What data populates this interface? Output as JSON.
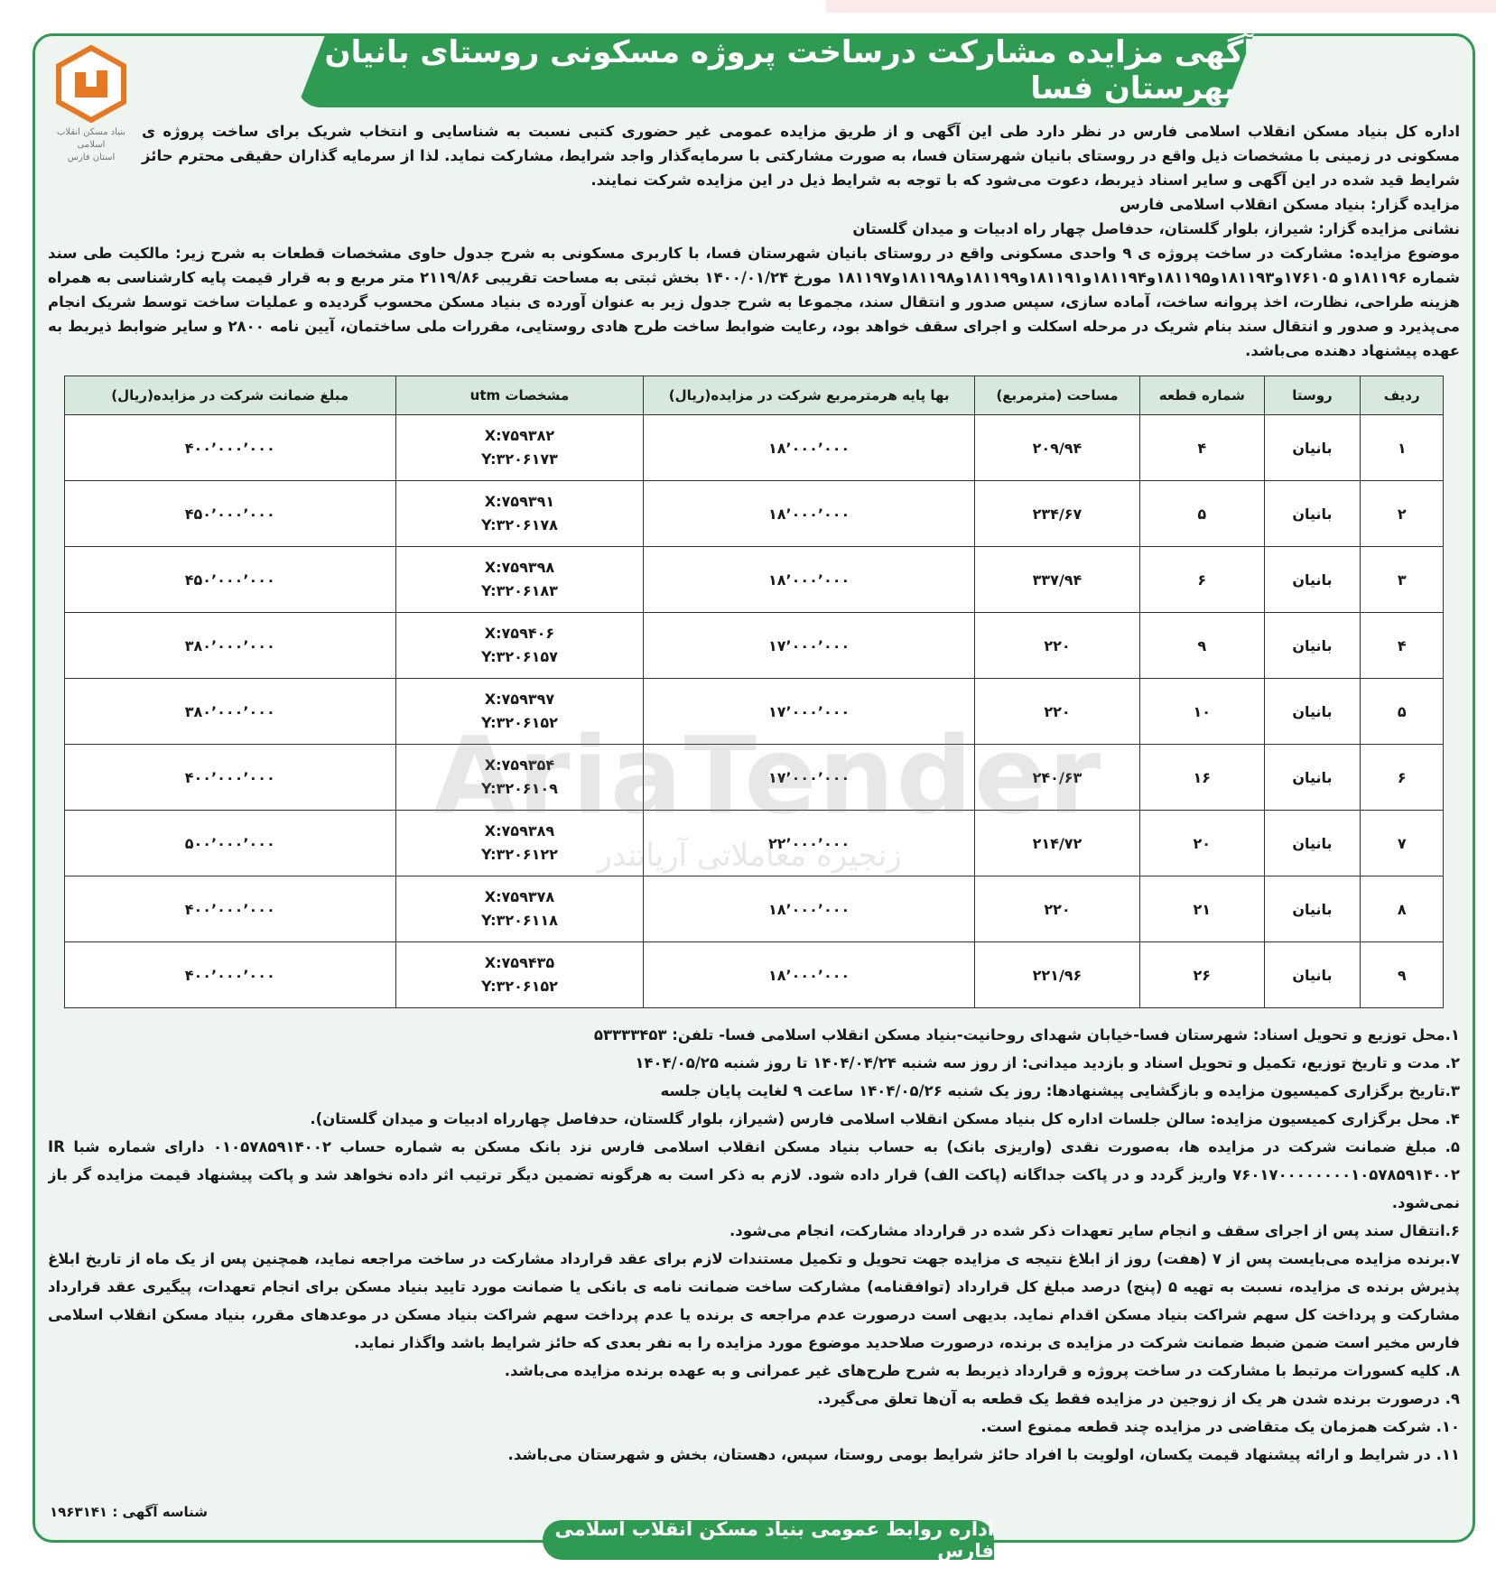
{
  "header": {
    "title": "آگهی مزایده مشارکت درساخت پروژه مسکونی روستای بانیان شهرستان فسا",
    "logo_lines": [
      "بنیاد مسکن انقلاب اسلامی",
      "استان فارس"
    ]
  },
  "intro": {
    "paragraph": "اداره کل بنیاد مسکن انقلاب اسلامی فارس در نظر دارد طی این آگهی و از طریق مزایده عمومی غیر حضوری کتبی نسبت به شناسایی و انتخاب شریک برای ساخت پروژه ی مسکونی در زمینی با مشخصات ذیل واقع در روستای بانیان شهرستان فسا، به صورت مشارکتی با سرمایه‌گذار واجد شرایط، مشارکت نماید. لذا از سرمایه گذاران حقیقی محترم حائز شرایط قید شده در این آگهی و سایر اسناد ذیربط، دعوت می‌شود که با توجه به شرایط ذیل در این مزایده شرکت نمایند.",
    "organizer": "مزایده گزار: بنیاد مسکن انقلاب اسلامی فارس",
    "address": "نشانی مزایده گزار: شیراز، بلوار گلستان، حدفاصل چهار راه ادبیات و میدان گلستان",
    "subject": "موضوع مزایده: مشارکت در ساخت پروژه ی ۹ واحدی مسکونی واقع در روستای بانیان شهرستان فسا، با کاربری مسکونی به شرح جدول حاوی مشخصات قطعات به شرح زیر: مالکیت طی سند شماره ۱۸۱۱۹۶و ۱۷۶۱۰۵و۱۸۱۱۹۳و۱۸۱۱۹۵و۱۸۱۱۹۴و۱۸۱۱۹۱و۱۸۱۱۹۹و۱۸۱۱۹۸و۱۸۱۱۹۷ مورخ ۱۴۰۰/۰۱/۲۴ بخش ثبتی به مساحت تقریبی ۲۱۱۹/۸۶ متر مربع و به قرار قیمت پایه کارشناسی به همراه هزینه طراحی، نظارت، اخذ پروانه ساخت، آماده سازی، سپس صدور و انتقال سند، مجموعا به شرح جدول زیر به عنوان آورده ی بنیاد مسکن محسوب گردیده و عملیات ساخت توسط شریک انجام می‌پذیرد و صدور و انتقال سند بنام شریک در مرحله اسکلت و اجرای سقف خواهد بود، رعایت ضوابط ساخت طرح هادی روستایی، مقررات ملی ساختمان، آیین نامه ۲۸۰۰ و سایر ضوابط ذیربط به عهده پیشنهاد دهنده می‌باشد."
  },
  "table": {
    "columns": [
      "ردیف",
      "روستا",
      "شماره قطعه",
      "مساحت (مترمربع)",
      "بها پایه هرمترمربع شرکت در مزایده(ریال)",
      "مشخصات utm",
      "مبلغ ضمانت شرکت در مزایده(ریال)"
    ],
    "rows": [
      [
        "۱",
        "بانیان",
        "۴",
        "۲۰۹/۹۴",
        "۱۸٬۰۰۰٬۰۰۰",
        [
          "X:۷۵۹۳۸۲",
          "Y:۳۲۰۶۱۷۳"
        ],
        "۴۰۰٬۰۰۰٬۰۰۰"
      ],
      [
        "۲",
        "بانیان",
        "۵",
        "۲۳۴/۶۷",
        "۱۸٬۰۰۰٬۰۰۰",
        [
          "X:۷۵۹۳۹۱",
          "Y:۳۲۰۶۱۷۸"
        ],
        "۴۵۰٬۰۰۰٬۰۰۰"
      ],
      [
        "۳",
        "بانیان",
        "۶",
        "۳۳۷/۹۴",
        "۱۸٬۰۰۰٬۰۰۰",
        [
          "X:۷۵۹۳۹۸",
          "Y:۳۲۰۶۱۸۳"
        ],
        "۴۵۰٬۰۰۰٬۰۰۰"
      ],
      [
        "۴",
        "بانیان",
        "۹",
        "۲۲۰",
        "۱۷٬۰۰۰٬۰۰۰",
        [
          "X:۷۵۹۴۰۶",
          "Y:۳۲۰۶۱۵۷"
        ],
        "۳۸۰٬۰۰۰٬۰۰۰"
      ],
      [
        "۵",
        "بانیان",
        "۱۰",
        "۲۲۰",
        "۱۷٬۰۰۰٬۰۰۰",
        [
          "X:۷۵۹۳۹۷",
          "Y:۳۲۰۶۱۵۲"
        ],
        "۳۸۰٬۰۰۰٬۰۰۰"
      ],
      [
        "۶",
        "بانیان",
        "۱۶",
        "۲۴۰/۶۳",
        "۱۷٬۰۰۰٬۰۰۰",
        [
          "X:۷۵۹۳۵۴",
          "Y:۳۲۰۶۱۰۹"
        ],
        "۴۰۰٬۰۰۰٬۰۰۰"
      ],
      [
        "۷",
        "بانیان",
        "۲۰",
        "۲۱۴/۷۲",
        "۲۲٬۰۰۰٬۰۰۰",
        [
          "X:۷۵۹۳۸۹",
          "Y:۳۲۰۶۱۲۲"
        ],
        "۵۰۰٬۰۰۰٬۰۰۰"
      ],
      [
        "۸",
        "بانیان",
        "۲۱",
        "۲۲۰",
        "۱۸٬۰۰۰٬۰۰۰",
        [
          "X:۷۵۹۳۷۸",
          "Y:۳۲۰۶۱۱۸"
        ],
        "۴۰۰٬۰۰۰٬۰۰۰"
      ],
      [
        "۹",
        "بانیان",
        "۲۶",
        "۲۲۱/۹۶",
        "۱۸٬۰۰۰٬۰۰۰",
        [
          "X:۷۵۹۴۳۵",
          "Y:۳۲۰۶۱۵۲"
        ],
        "۴۰۰٬۰۰۰٬۰۰۰"
      ]
    ]
  },
  "conditions": [
    "۱.محل توزیع و تحویل اسناد: شهرستان فسا-خیابان شهدای روحانیت-بنیاد مسکن انقلاب اسلامی فسا- تلفن: ۵۳۳۳۳۴۵۳",
    "۲. مدت و تاریخ توزیع، تکمیل و تحویل اسناد و بازدید میدانی: از روز سه شنبه ۱۴۰۴/۰۴/۲۴ تا روز شنبه ۱۴۰۴/۰۵/۲۵",
    "۳.تاریخ برگزاری کمیسیون مزایده و بازگشایی پیشنهادها: روز یک شنبه ۱۴۰۴/۰۵/۲۶ ساعت ۹ لغایت پایان جلسه",
    "۴. محل برگزاری کمیسیون مزایده: سالن جلسات اداره کل بنیاد مسکن انقلاب اسلامی فارس (شیراز، بلوار گلستان، حدفاصل چهارراه ادبیات و میدان گلستان).",
    "۵. مبلغ ضمانت شرکت در مزایده ها، به‌صورت نقدی (واریزی بانک) به حساب بنیاد مسکن انقلاب اسلامی فارس نزد بانک مسکن به شماره حساب ۰۱۰۵۷۸۵۹۱۴۰۰۲ دارای شماره شبا IR ۷۶۰۱۷۰۰۰۰۰۰۰۰۱۰۵۷۸۵۹۱۴۰۰۲ واریز گردد و در پاکت جداگانه (پاکت الف) قرار داده شود. لازم به ذکر است به هرگونه تضمین دیگر ترتیب اثر داده نخواهد شد و پاکت پیشنهاد قیمت مزایده گر باز نمی‌شود.",
    "۶.انتقال سند پس از اجرای سقف و انجام سایر تعهدات ذکر شده در قرارداد مشارکت، انجام می‌شود.",
    "۷.برنده مزایده می‌بایست پس از ۷ (هفت) روز از ابلاغ نتیجه ی مزایده جهت تحویل و تکمیل مستندات لازم برای عقد قرارداد مشارکت در ساخت مراجعه نماید، همچنین پس از یک ماه از تاریخ ابلاغ پذیرش برنده ی مزایده، نسبت به تهیه ۵ (پنج) درصد مبلغ کل قرارداد (توافقنامه) مشارکت ساخت ضمانت نامه ی بانکی یا ضمانت مورد تایید بنیاد مسکن برای انجام تعهدات، پیگیری عقد قرارداد مشارکت و پرداخت کل سهم شراکت بنیاد مسکن اقدام نماید. بدیهی است درصورت عدم مراجعه ی برنده یا عدم پرداخت سهم شراکت بنیاد مسکن در موعدهای مقرر، بنیاد مسکن انقلاب اسلامی فارس مخیر است ضمن ضبط ضمانت شرکت در مزایده ی برنده، درصورت صلاحدید موضوع مورد مزایده را به نفر بعدی که حائز شرایط باشد واگذار نماید.",
    "۸. کلیه کسورات مرتبط با مشارکت در ساخت پروژه و قرارداد ذیربط به شرح طرح‌های غیر عمرانی و به عهده برنده مزایده می‌باشد.",
    "۹. درصورت برنده شدن هر یک از زوجین در مزایده فقط یک قطعه به آن‌ها تعلق می‌گیرد.",
    "۱۰. شرکت همزمان یک متقاضی در مزایده چند قطعه ممنوع است.",
    "۱۱. در شرایط و ارائه پیشنهاد قیمت یکسان، اولویت با افراد حائز شرایط بومی روستا، سپس، دهستان، بخش و شهرستان می‌باشد."
  ],
  "footer": {
    "ad_id": "شناسه آگهی : ۱۹۶۳۱۴۱",
    "banner": "اداره روابط عمومی بنیاد مسکن انقلاب اسلامی فارس"
  },
  "watermark": {
    "brand": "AriaTender",
    "tagline": "زنجیره معاملاتی آریاتندر"
  }
}
